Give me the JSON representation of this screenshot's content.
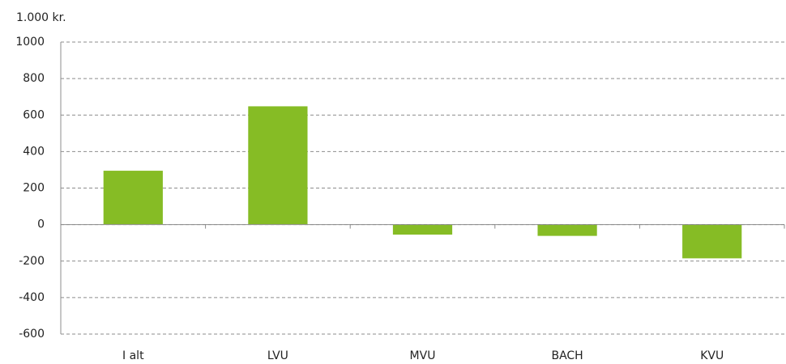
{
  "chart_data": {
    "type": "bar",
    "y_label": "1.000 kr.",
    "categories": [
      "I alt",
      "LVU",
      "MVU",
      "BACH",
      "KVU"
    ],
    "values": [
      295,
      648,
      -55,
      -62,
      -185
    ],
    "color": "#86bc25",
    "ylim": [
      -600,
      1000
    ],
    "yticks": [
      -600,
      -400,
      -200,
      0,
      200,
      400,
      600,
      800,
      1000
    ],
    "grid": true
  }
}
